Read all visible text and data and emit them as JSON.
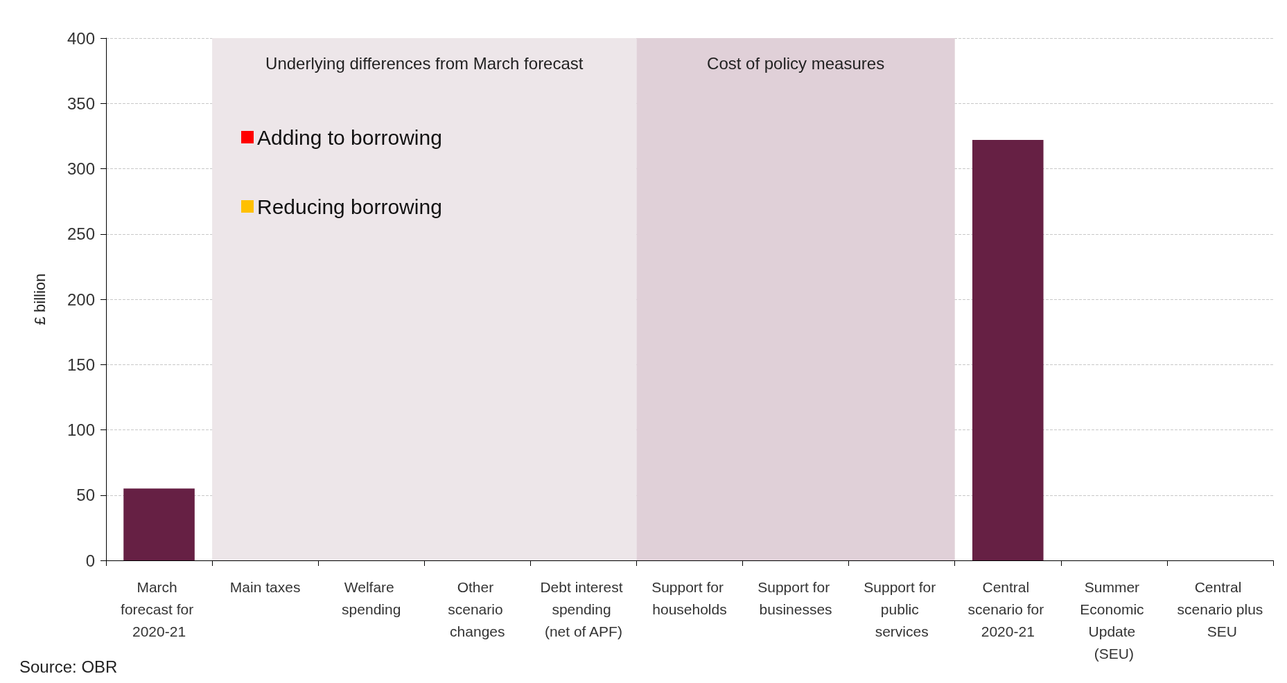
{
  "chart_data": {
    "type": "bar",
    "ylabel": "£ billion",
    "categories": [
      "March forecast for 2020-21",
      "Main taxes",
      "Welfare spending",
      "Other scenario changes",
      "Debt interest spending (net of APF)",
      "Support for households",
      "Support for businesses",
      "Support for public services",
      "Central scenario for 2020-21",
      "Summer Economic Update (SEU)",
      "Central scenario plus SEU"
    ],
    "series": [
      {
        "color": "#662044",
        "values": [
          55,
          null,
          null,
          null,
          null,
          null,
          null,
          null,
          322,
          null,
          null
        ]
      },
      {
        "name": "Adding to borrowing",
        "color": "#ff0000",
        "values": [
          null,
          null,
          null,
          null,
          null,
          null,
          null,
          null,
          null,
          null,
          null
        ]
      },
      {
        "name": "Reducing borrowing",
        "color": "#ffc000",
        "values": [
          null,
          null,
          null,
          null,
          null,
          null,
          null,
          null,
          null,
          null,
          null
        ]
      }
    ],
    "ylim": [
      0,
      400
    ],
    "yticks": [
      0,
      50,
      100,
      150,
      200,
      250,
      300,
      350,
      400
    ],
    "grid": "y",
    "legend": "top left",
    "bands": [
      {
        "axis": "x",
        "from": "Main taxes",
        "to": "Debt interest spending (net of APF)",
        "label": "Underlying differences from March forecast",
        "color": "#ede6e9"
      },
      {
        "axis": "x",
        "from": "Support for households",
        "to": "Support for public services",
        "label": "Cost of policy measures",
        "color": "#e0d0d8"
      }
    ],
    "annotations": [
      "Source: OBR"
    ]
  }
}
